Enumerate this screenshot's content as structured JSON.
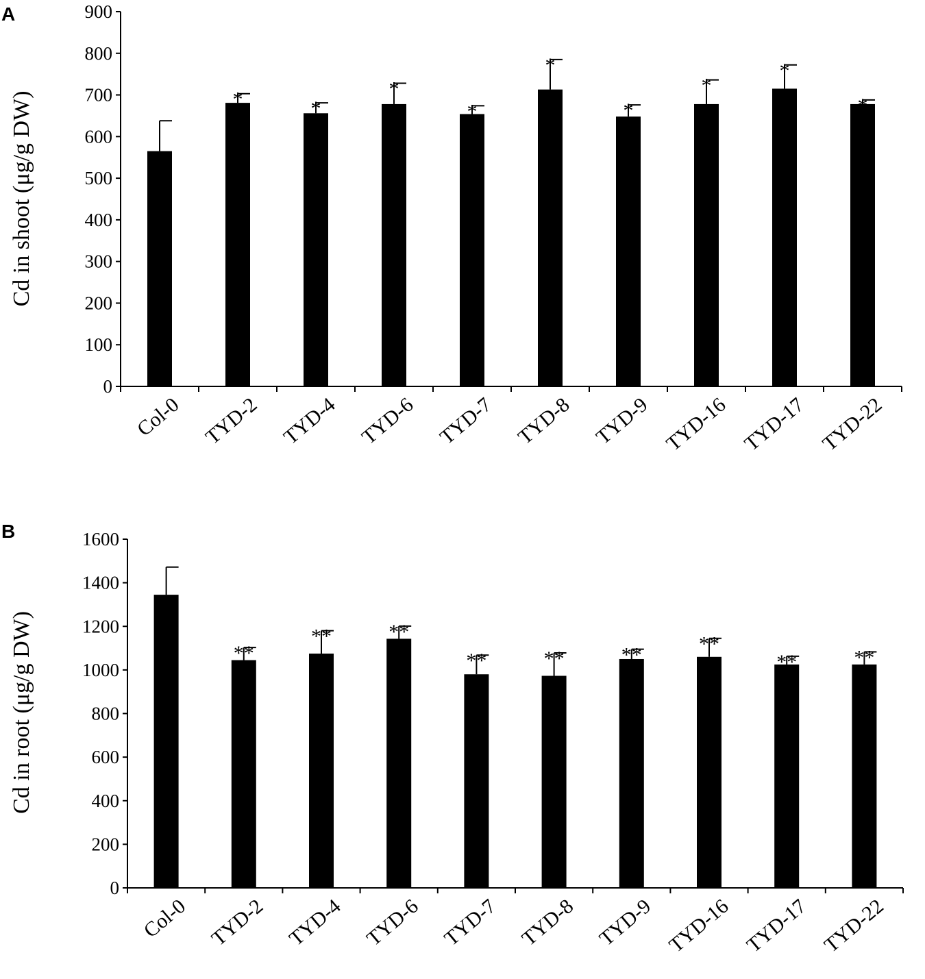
{
  "chart_data": [
    {
      "panel": "A",
      "type": "bar",
      "ylabel": "Cd in shoot (μg/g DW)",
      "xlabel": "",
      "ylim": [
        0,
        900
      ],
      "yticks": [
        0,
        100,
        200,
        300,
        400,
        500,
        600,
        700,
        800,
        900
      ],
      "categories": [
        "Col-0",
        "TYD-2",
        "TYD-4",
        "TYD-6",
        "TYD-7",
        "TYD-8",
        "TYD-9",
        "TYD-16",
        "TYD-17",
        "TYD-22"
      ],
      "values": [
        565,
        681,
        656,
        678,
        654,
        713,
        648,
        678,
        715,
        678
      ],
      "errors": [
        73,
        22,
        25,
        50,
        20,
        72,
        28,
        58,
        57,
        10
      ],
      "significance": [
        "",
        "*",
        "*",
        "*",
        "*",
        "*",
        "*",
        "*",
        "*",
        "*"
      ],
      "grid": false,
      "legend": "none"
    },
    {
      "panel": "B",
      "type": "bar",
      "ylabel": "Cd in root (μg/g DW)",
      "xlabel": "",
      "ylim": [
        0,
        1600
      ],
      "yticks": [
        0,
        200,
        400,
        600,
        800,
        1000,
        1200,
        1400,
        1600
      ],
      "categories": [
        "Col-0",
        "TYD-2",
        "TYD-4",
        "TYD-6",
        "TYD-7",
        "TYD-8",
        "TYD-9",
        "TYD-16",
        "TYD-17",
        "TYD-22"
      ],
      "values": [
        1345,
        1045,
        1075,
        1143,
        980,
        973,
        1050,
        1060,
        1025,
        1025
      ],
      "errors": [
        127,
        58,
        105,
        58,
        88,
        105,
        45,
        85,
        38,
        58
      ],
      "significance": [
        "",
        "**",
        "**",
        "**",
        "**",
        "**",
        "**",
        "**",
        "**",
        "**"
      ],
      "grid": false,
      "legend": "none"
    }
  ]
}
